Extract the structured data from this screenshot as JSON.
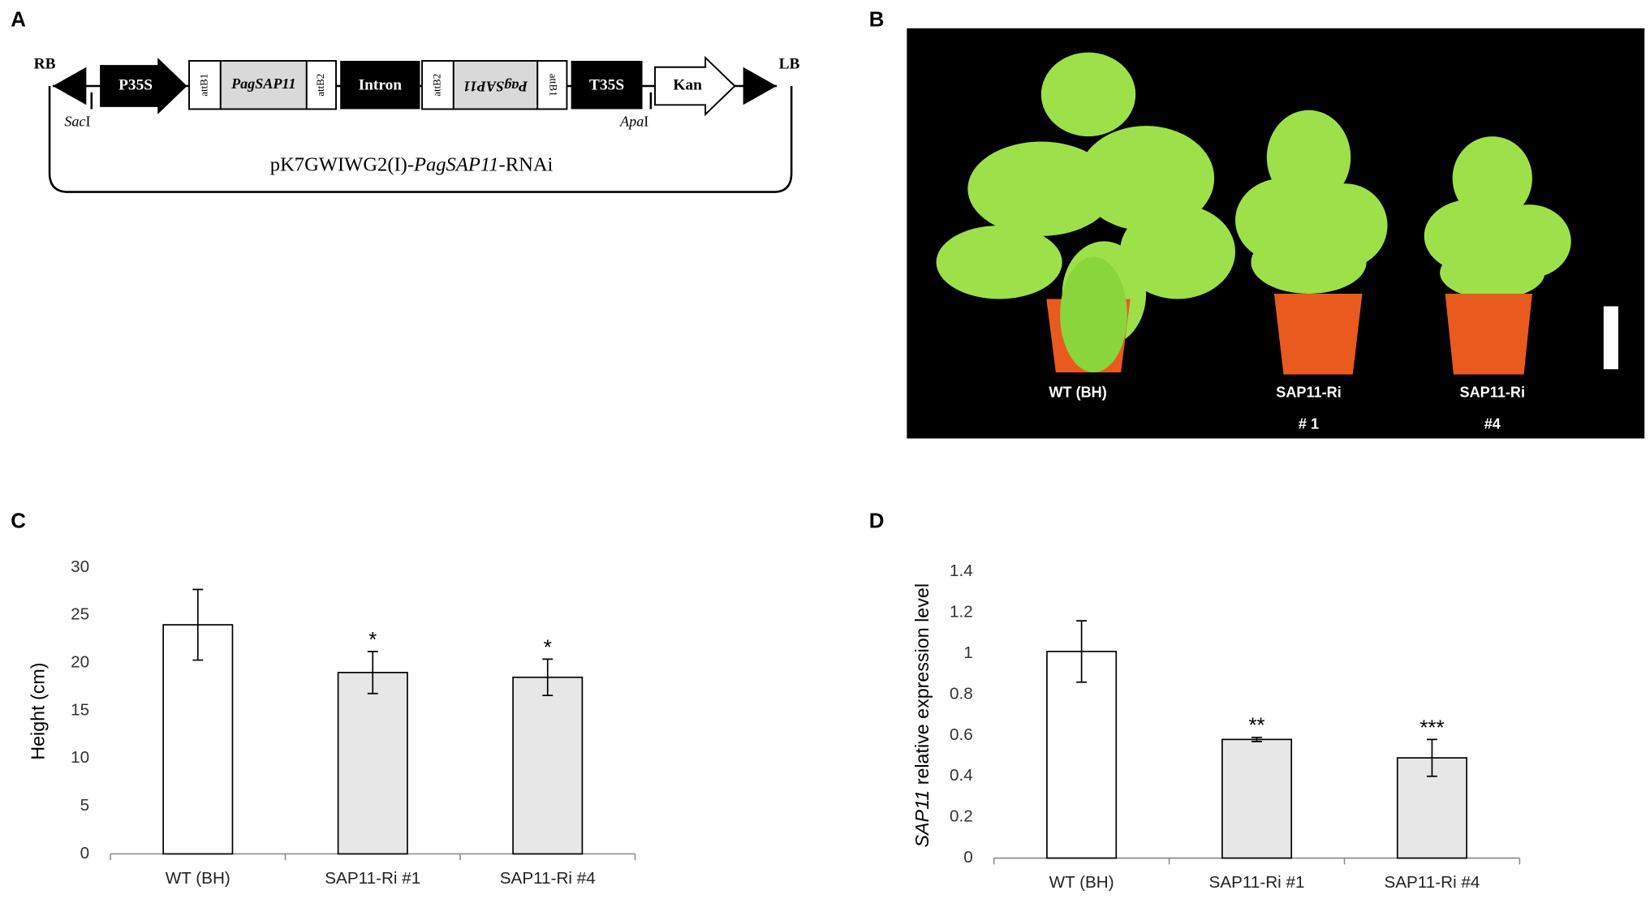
{
  "panels": {
    "a": "A",
    "b": "B",
    "c": "C",
    "d": "D"
  },
  "construct": {
    "rb": "RB",
    "lb": "LB",
    "p35s": "P35S",
    "attb1": "attB1",
    "gene": "PagSAP11",
    "attb2": "attB2",
    "intron": "Intron",
    "attb2_rev": "attB2",
    "gene_rev": "PagSAP11",
    "attb1_rev": "attB1",
    "t35s": "T35S",
    "kan": "Kan",
    "sac": "Sac",
    "sac_suffix": "I",
    "apa": "Apa",
    "apa_suffix": "I",
    "plasmid_prefix": "pK7GWIWG2(I)-",
    "plasmid_gene": "PagSAP11",
    "plasmid_suffix": "-RNAi"
  },
  "photo": {
    "wt": "WT (BH)",
    "line1": "SAP11-Ri",
    "line1_no": "# 1",
    "line4": "SAP11-Ri",
    "line4_no": "#4"
  },
  "chart_data": [
    {
      "type": "bar",
      "ylabel": "Height (cm)",
      "categories": [
        "WT (BH)",
        "SAP11-Ri #1",
        "SAP11-Ri #4"
      ],
      "values": [
        24,
        19,
        18.5
      ],
      "errors": [
        3.7,
        2.2,
        1.9
      ],
      "significance": [
        null,
        "*",
        "*"
      ],
      "colors": [
        "#ffffff",
        "#e7e7e7",
        "#e7e7e7"
      ],
      "ylim": [
        0,
        30
      ],
      "yticks": [
        0,
        5,
        10,
        15,
        20,
        25,
        30
      ]
    },
    {
      "type": "bar",
      "ylabel_italic": "SAP11",
      "ylabel": "relative expression level",
      "categories": [
        "WT (BH)",
        "SAP11-Ri #1",
        "SAP11-Ri #4"
      ],
      "values": [
        1.01,
        0.58,
        0.49
      ],
      "errors": [
        0.15,
        0.01,
        0.09
      ],
      "significance": [
        null,
        "**",
        "***"
      ],
      "colors": [
        "#ffffff",
        "#e7e7e7",
        "#e7e7e7"
      ],
      "ylim": [
        0,
        1.4
      ],
      "yticks": [
        0,
        0.2,
        0.4,
        0.6,
        0.8,
        1,
        1.2,
        1.4
      ]
    }
  ]
}
